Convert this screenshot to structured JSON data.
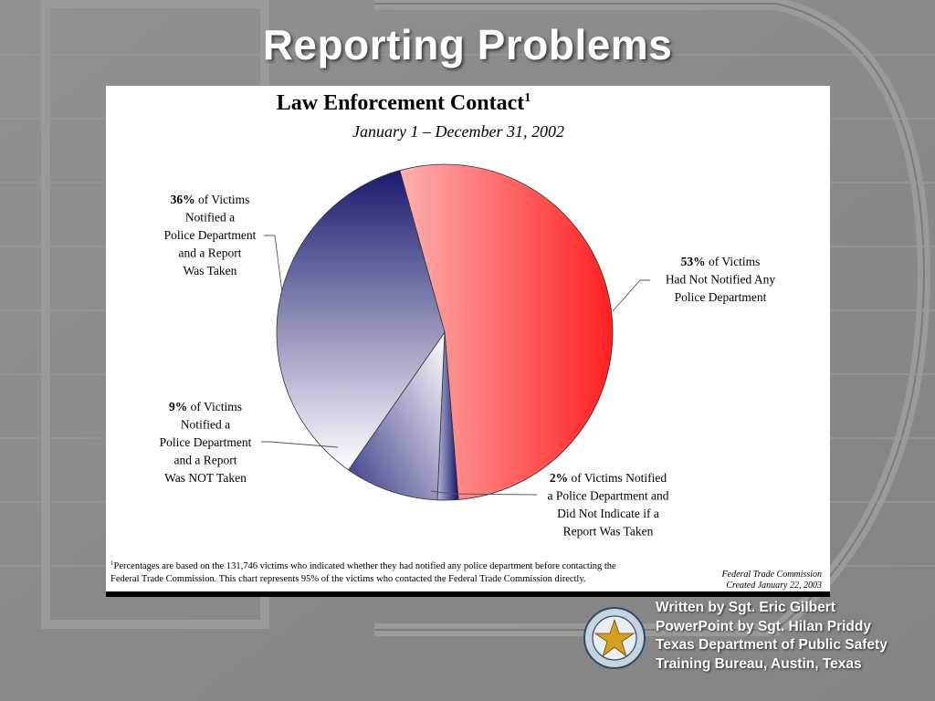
{
  "slide": {
    "title": "Reporting Problems",
    "credits": [
      "Written by Sgt. Eric Gilbert",
      "PowerPoint by Sgt. Hilan Priddy",
      "Texas Department of Public Safety",
      "Training Bureau, Austin, Texas"
    ],
    "seal_icon": "texas-dps-seal-icon"
  },
  "chart_data": {
    "type": "pie",
    "title": "Law Enforcement Contact",
    "title_superscript": "1",
    "subtitle": "January 1 – December 31, 2002",
    "slices": [
      {
        "value": 53,
        "label_pct": "53%",
        "label_lines": [
          "of Victims",
          "Had Not Notified Any",
          "Police Department"
        ],
        "color": "#ff2222"
      },
      {
        "value": 2,
        "label_pct": "2%",
        "label_lines": [
          "of Victims Notified",
          "a Police Department and",
          "Did Not Indicate if a",
          "Report Was Taken"
        ],
        "color": "#1a1a6e"
      },
      {
        "value": 9,
        "label_pct": "9%",
        "label_lines": [
          "of Victims",
          "Notified a",
          "Police Department",
          "and a Report",
          "Was NOT Taken"
        ],
        "color": "#2a2a7a"
      },
      {
        "value": 36,
        "label_pct": "36%",
        "label_lines": [
          "of Victims",
          "Notified a",
          "Police Department",
          "and a Report",
          "Was Taken"
        ],
        "color": "#15156a"
      }
    ],
    "footnote_lines": [
      "Percentages are based on the 131,746 victims who indicated whether they had notified any police department before contacting the",
      "Federal Trade Commission.  This chart represents 95% of the victims who contacted the Federal Trade Commission directly."
    ],
    "footnote_marker": "1",
    "source_lines": [
      "Federal Trade Commission",
      "Created January 22, 2003"
    ]
  }
}
